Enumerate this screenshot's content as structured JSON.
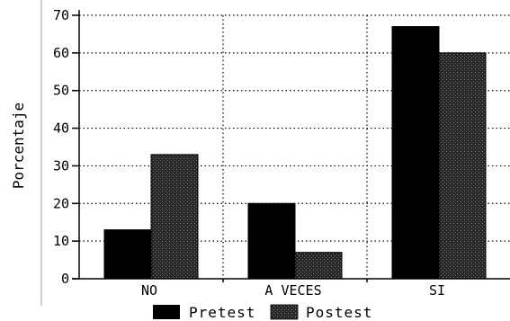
{
  "chart_data": {
    "type": "bar",
    "categories": [
      "NO",
      "A VECES",
      "SI"
    ],
    "series": [
      {
        "name": "Pretest",
        "values": [
          13,
          20,
          67
        ],
        "color": "#000000"
      },
      {
        "name": "Postest",
        "values": [
          33,
          7,
          60
        ],
        "color": "#333333"
      }
    ],
    "ylabel": "Porcentaje",
    "xlabel": "",
    "ylim": [
      0,
      70
    ],
    "yticks": [
      0,
      10,
      20,
      30,
      40,
      50,
      60,
      70
    ],
    "grid": {
      "horizontal": true,
      "vertical": true,
      "style": "dotted"
    },
    "legend_position": "bottom"
  }
}
